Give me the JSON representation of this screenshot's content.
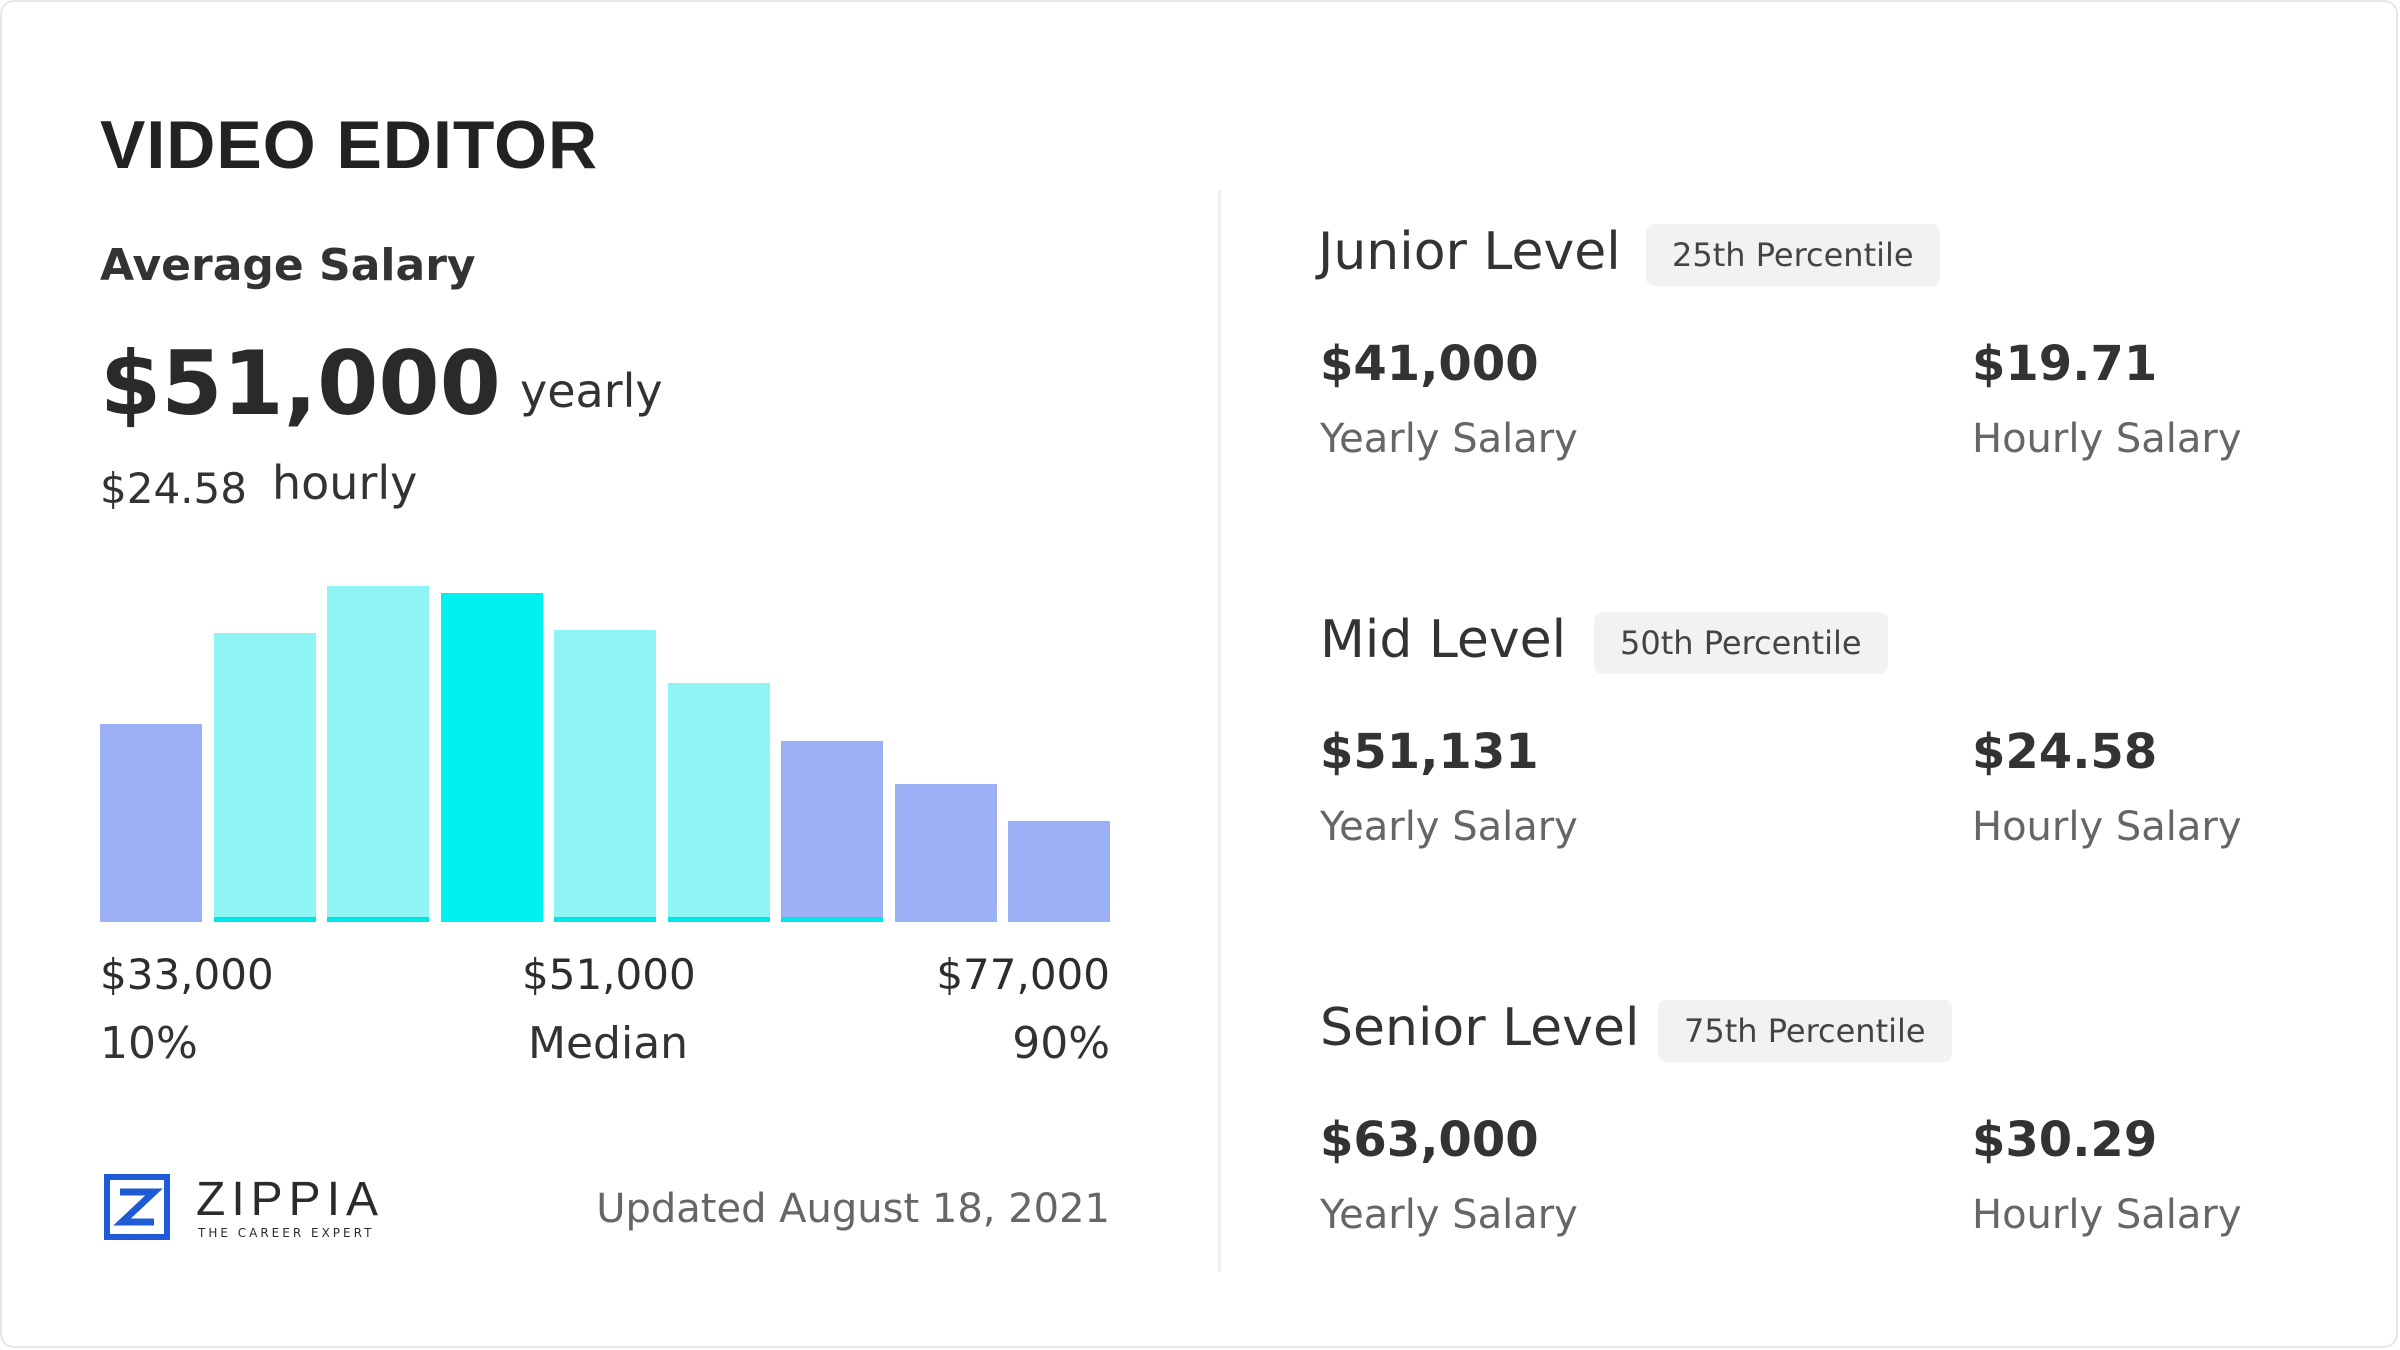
{
  "title": "VIDEO EDITOR",
  "average": {
    "label": "Average Salary",
    "yearly_amount": "$51,000",
    "yearly_unit": "yearly",
    "hourly_amount": "$24.58",
    "hourly_unit": "hourly"
  },
  "chart_data": {
    "type": "bar",
    "bars": 9,
    "values": [
      0.59,
      0.86,
      1.0,
      0.98,
      0.87,
      0.71,
      0.54,
      0.41,
      0.3
    ],
    "highlight_index": 3,
    "colors": {
      "low": "#9bb0f5",
      "mid": "#8ff4f4",
      "median": "#00f0f0",
      "underline": "#00e5e5"
    },
    "ticks": [
      {
        "value": "$33,000",
        "label": "10%"
      },
      {
        "value": "$51,000",
        "label": "Median"
      },
      {
        "value": "$77,000",
        "label": "90%"
      }
    ]
  },
  "footer": {
    "logo_word": "ZIPPIA",
    "logo_tagline": "THE CAREER EXPERT",
    "updated": "Updated August 18, 2021"
  },
  "levels": [
    {
      "name": "Junior Level",
      "percentile": "25th Percentile",
      "yearly": "$41,000",
      "yearly_label": "Yearly Salary",
      "hourly": "$19.71",
      "hourly_label": "Hourly Salary"
    },
    {
      "name": "Mid Level",
      "percentile": "50th Percentile",
      "yearly": "$51,131",
      "yearly_label": "Yearly Salary",
      "hourly": "$24.58",
      "hourly_label": "Hourly Salary"
    },
    {
      "name": "Senior Level",
      "percentile": "75th Percentile",
      "yearly": "$63,000",
      "yearly_label": "Yearly Salary",
      "hourly": "$30.29",
      "hourly_label": "Hourly Salary"
    }
  ],
  "brand_color": "#1f5bd6"
}
